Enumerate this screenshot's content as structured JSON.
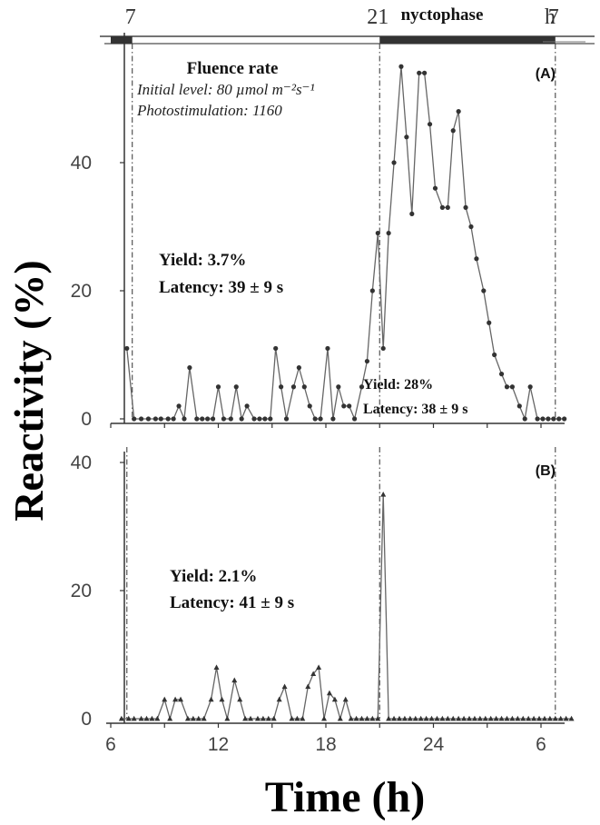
{
  "chart_data": [
    {
      "type": "line",
      "panel_label": "(A)",
      "x_tick_labels": [
        "6",
        "12",
        "18",
        "24",
        "6"
      ],
      "ylabel": "Reactivity (%)",
      "ylim": [
        0,
        60
      ],
      "y_ticks": [
        0,
        20,
        40
      ],
      "top_axis": {
        "tick_labels": [
          "7",
          "21",
          "7"
        ],
        "unit": "h",
        "dark_label": "nyctophase",
        "dark_periods": [
          [
            6.0,
            7.2
          ],
          [
            21.0,
            30.8
          ]
        ]
      },
      "transition_lines_h": [
        7.2,
        21.0,
        30.8
      ],
      "annotations": {
        "fluence_title": "Fluence rate",
        "fluence_initial": "Initial level: 80 µmol m⁻²s⁻¹",
        "fluence_photo": "Photostimulation: 1160",
        "day_yield": "Yield: 3.7%",
        "day_latency": "Latency: 39 ± 9 s",
        "night_yield": "Yield: 28%",
        "night_latency": "Latency: 38 ± 9 s"
      },
      "x": [
        6.9,
        7.3,
        7.7,
        8.1,
        8.5,
        8.8,
        9.2,
        9.5,
        9.8,
        10.1,
        10.4,
        10.8,
        11.1,
        11.4,
        11.7,
        12.0,
        12.3,
        12.7,
        13.0,
        13.3,
        13.6,
        14.0,
        14.3,
        14.6,
        14.9,
        15.2,
        15.5,
        15.8,
        16.2,
        16.5,
        16.8,
        17.1,
        17.4,
        17.7,
        18.1,
        18.4,
        18.7,
        19.0,
        19.3,
        19.6,
        20.0,
        20.3,
        20.6,
        20.9,
        21.2,
        21.5,
        21.8,
        22.2,
        22.5,
        22.8,
        23.2,
        23.5,
        23.8,
        24.1,
        24.5,
        24.8,
        25.1,
        25.4,
        25.8,
        26.1,
        26.4,
        26.8,
        27.1,
        27.4,
        27.8,
        28.1,
        28.4,
        28.8,
        29.1,
        29.4,
        29.8,
        30.1,
        30.4,
        30.7,
        31.0,
        31.3
      ],
      "values": [
        11,
        0,
        0,
        0,
        0,
        0,
        0,
        0,
        2,
        0,
        8,
        0,
        0,
        0,
        0,
        5,
        0,
        0,
        5,
        0,
        2,
        0,
        0,
        0,
        0,
        11,
        5,
        0,
        5,
        8,
        5,
        2,
        0,
        0,
        11,
        0,
        5,
        2,
        2,
        0,
        5,
        9,
        20,
        29,
        11,
        29,
        40,
        55,
        44,
        32,
        54,
        54,
        46,
        36,
        33,
        33,
        45,
        48,
        33,
        30,
        25,
        20,
        15,
        10,
        7,
        5,
        5,
        2,
        0,
        5,
        0,
        0,
        0,
        0,
        0,
        0
      ]
    },
    {
      "type": "line",
      "panel_label": "(B)",
      "x_tick_labels": [
        "6",
        "12",
        "18",
        "24",
        "6"
      ],
      "xlabel": "Time (h)",
      "ylabel": "Reactivity (%)",
      "ylim": [
        0,
        42
      ],
      "y_ticks": [
        0,
        20,
        40
      ],
      "transition_lines_h": [
        6.9,
        21.0,
        30.8
      ],
      "annotations": {
        "day_yield": "Yield: 2.1%",
        "day_latency": "Latency: 41 ± 9 s"
      },
      "x": [
        6.6,
        7.0,
        7.3,
        7.7,
        8.0,
        8.3,
        8.6,
        9.0,
        9.3,
        9.6,
        9.9,
        10.3,
        10.6,
        10.9,
        11.2,
        11.6,
        11.9,
        12.2,
        12.5,
        12.9,
        13.2,
        13.5,
        13.8,
        14.2,
        14.5,
        14.8,
        15.1,
        15.4,
        15.7,
        16.1,
        16.4,
        16.7,
        17.0,
        17.3,
        17.6,
        17.9,
        18.2,
        18.5,
        18.8,
        19.1,
        19.4,
        19.7,
        20.0,
        20.3,
        20.6,
        20.9,
        21.2,
        21.5,
        21.8,
        22.1,
        22.4,
        22.7,
        23.0,
        23.3,
        23.6,
        23.9,
        24.2,
        24.5,
        24.8,
        25.1,
        25.4,
        25.7,
        26.0,
        26.3,
        26.6,
        26.9,
        27.2,
        27.5,
        27.8,
        28.1,
        28.4,
        28.7,
        29.0,
        29.3,
        29.6,
        29.9,
        30.2,
        30.5,
        30.8,
        31.1,
        31.4,
        31.7
      ],
      "values": [
        0,
        0,
        0,
        0,
        0,
        0,
        0,
        3,
        0,
        3,
        3,
        0,
        0,
        0,
        0,
        3,
        8,
        3,
        0,
        6,
        3,
        0,
        0,
        0,
        0,
        0,
        0,
        3,
        5,
        0,
        0,
        0,
        5,
        7,
        8,
        0,
        4,
        3,
        0,
        3,
        0,
        0,
        0,
        0,
        0,
        0,
        35,
        0,
        0,
        0,
        0,
        0,
        0,
        0,
        0,
        0,
        0,
        0,
        0,
        0,
        0,
        0,
        0,
        0,
        0,
        0,
        0,
        0,
        0,
        0,
        0,
        0,
        0,
        0,
        0,
        0,
        0,
        0,
        0,
        0,
        0,
        0
      ]
    }
  ]
}
